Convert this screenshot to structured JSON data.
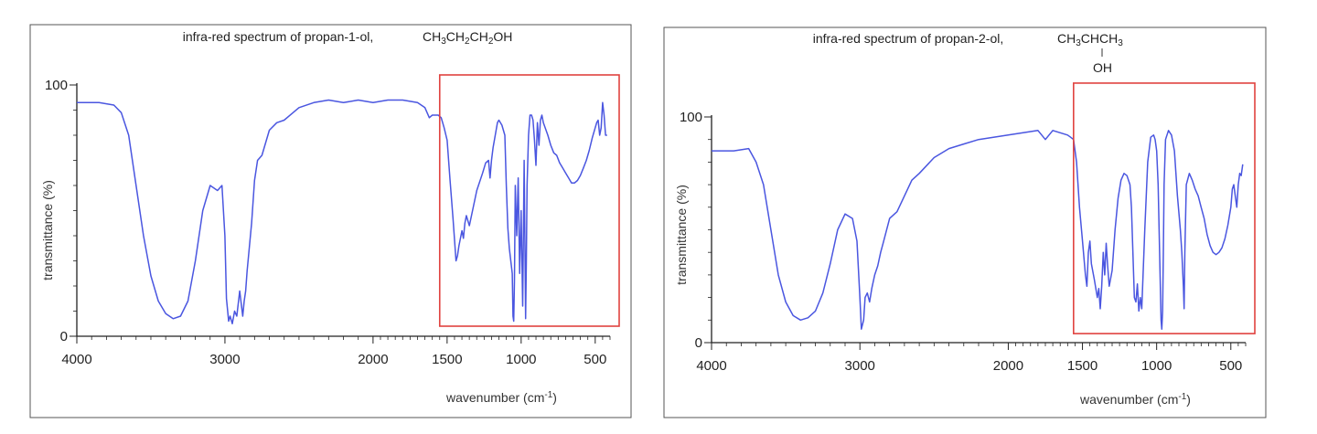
{
  "chart_data": [
    {
      "type": "line",
      "title": "infra-red spectrum of propan-1-ol,",
      "formula": "CH3CH2CH2OH",
      "xlabel": "wavenumber (cm-1)",
      "ylabel": "transmittance (%)",
      "xlim": [
        4000,
        400
      ],
      "ylim": [
        0,
        100
      ],
      "x_ticks": [
        4000,
        3000,
        2000,
        1500,
        1000,
        500
      ],
      "y_ticks": [
        0,
        100
      ],
      "highlight_range": {
        "x": [
          1550,
          400
        ],
        "y": [
          4,
          104
        ]
      },
      "series": [
        {
          "x": [
            4000,
            3850,
            3750,
            3700,
            3650,
            3600,
            3550,
            3500,
            3450,
            3400,
            3350,
            3300,
            3250,
            3200,
            3150,
            3100,
            3050,
            3020,
            3000,
            2990,
            2975,
            2965,
            2950,
            2935,
            2920,
            2900,
            2880,
            2870,
            2860,
            2850,
            2820,
            2800,
            2780,
            2750,
            2700,
            2650,
            2600,
            2500,
            2400,
            2300,
            2200,
            2100,
            2000,
            1900,
            1800,
            1700,
            1650,
            1620,
            1600,
            1560,
            1540,
            1520,
            1500,
            1480,
            1460,
            1440,
            1430,
            1420,
            1400,
            1390,
            1380,
            1370,
            1350,
            1300,
            1260,
            1240,
            1220,
            1210,
            1200,
            1190,
            1160,
            1150,
            1130,
            1110,
            1100,
            1090,
            1080,
            1070,
            1060,
            1055,
            1050,
            1045,
            1040,
            1030,
            1020,
            1010,
            1000,
            990,
            980,
            970,
            965,
            960,
            950,
            940,
            930,
            920,
            910,
            900,
            890,
            880,
            870,
            860,
            850,
            820,
            800,
            780,
            760,
            740,
            720,
            700,
            680,
            660,
            640,
            620,
            600,
            580,
            560,
            540,
            520,
            500,
            490,
            480,
            470,
            460,
            450,
            440,
            430,
            420
          ],
          "y": [
            93,
            93,
            92,
            89,
            80,
            60,
            40,
            24,
            14,
            9,
            7,
            8,
            14,
            30,
            50,
            60,
            58,
            60,
            40,
            15,
            6,
            8,
            5,
            10,
            8,
            18,
            8,
            14,
            18,
            26,
            45,
            62,
            70,
            72,
            82,
            85,
            86,
            91,
            93,
            94,
            93,
            94,
            93,
            94,
            94,
            93,
            91,
            87,
            88,
            88,
            87,
            83,
            78,
            62,
            47,
            30,
            32,
            36,
            42,
            39,
            45,
            48,
            44,
            58,
            65,
            69,
            70,
            63,
            70,
            75,
            85,
            86,
            84,
            80,
            60,
            43,
            35,
            30,
            25,
            8,
            6,
            22,
            60,
            40,
            63,
            25,
            50,
            12,
            70,
            7,
            30,
            60,
            80,
            88,
            88,
            86,
            78,
            68,
            85,
            76,
            86,
            88,
            85,
            80,
            76,
            73,
            72,
            69,
            67,
            65,
            63,
            61,
            61,
            62,
            64,
            67,
            70,
            74,
            79,
            83,
            85,
            86,
            80,
            83,
            93,
            88,
            80,
            80
          ]
        }
      ]
    },
    {
      "type": "line",
      "title": "infra-red spectrum of propan-2-ol,",
      "formula": "CH3CHCH3",
      "formula_branch": "OH",
      "xlabel": "wavenumber (cm-1)",
      "ylabel": "transmittance (%)",
      "xlim": [
        4000,
        400
      ],
      "ylim": [
        0,
        100
      ],
      "x_ticks": [
        4000,
        3000,
        2000,
        1500,
        1000,
        500
      ],
      "y_ticks": [
        0,
        100
      ],
      "highlight_range": {
        "x": [
          1560,
          400
        ],
        "y": [
          4,
          115
        ]
      },
      "series": [
        {
          "x": [
            4000,
            3850,
            3750,
            3700,
            3650,
            3600,
            3550,
            3500,
            3450,
            3400,
            3350,
            3300,
            3250,
            3200,
            3150,
            3100,
            3050,
            3020,
            3000,
            2990,
            2975,
            2965,
            2950,
            2935,
            2920,
            2900,
            2880,
            2860,
            2840,
            2800,
            2750,
            2700,
            2650,
            2600,
            2500,
            2400,
            2300,
            2200,
            2100,
            2000,
            1900,
            1800,
            1750,
            1700,
            1650,
            1600,
            1580,
            1560,
            1540,
            1520,
            1500,
            1480,
            1470,
            1460,
            1450,
            1440,
            1420,
            1400,
            1390,
            1380,
            1370,
            1360,
            1350,
            1340,
            1330,
            1320,
            1300,
            1280,
            1260,
            1240,
            1220,
            1200,
            1180,
            1170,
            1160,
            1150,
            1140,
            1130,
            1120,
            1110,
            1100,
            1080,
            1060,
            1040,
            1020,
            1010,
            1000,
            990,
            980,
            970,
            965,
            960,
            955,
            950,
            940,
            920,
            900,
            880,
            860,
            840,
            830,
            820,
            815,
            810,
            800,
            780,
            760,
            740,
            720,
            700,
            680,
            660,
            640,
            620,
            600,
            580,
            560,
            540,
            520,
            500,
            490,
            480,
            470,
            460,
            450,
            440,
            430,
            420
          ],
          "y": [
            85,
            85,
            86,
            80,
            70,
            50,
            30,
            18,
            12,
            10,
            11,
            14,
            22,
            35,
            50,
            57,
            55,
            45,
            20,
            6,
            10,
            20,
            22,
            18,
            24,
            30,
            34,
            40,
            45,
            55,
            58,
            65,
            72,
            75,
            82,
            86,
            88,
            90,
            91,
            92,
            93,
            94,
            90,
            94,
            93,
            92,
            91,
            90,
            80,
            60,
            45,
            30,
            25,
            40,
            45,
            35,
            28,
            20,
            24,
            15,
            25,
            40,
            30,
            44,
            34,
            25,
            32,
            50,
            64,
            72,
            75,
            74,
            70,
            60,
            40,
            20,
            18,
            26,
            14,
            20,
            15,
            50,
            80,
            91,
            92,
            90,
            85,
            70,
            40,
            10,
            6,
            14,
            40,
            70,
            90,
            94,
            92,
            85,
            65,
            50,
            40,
            25,
            15,
            40,
            70,
            75,
            72,
            68,
            65,
            60,
            55,
            48,
            43,
            40,
            39,
            40,
            42,
            46,
            52,
            60,
            68,
            70,
            65,
            60,
            70,
            75,
            74,
            79
          ]
        }
      ]
    }
  ]
}
